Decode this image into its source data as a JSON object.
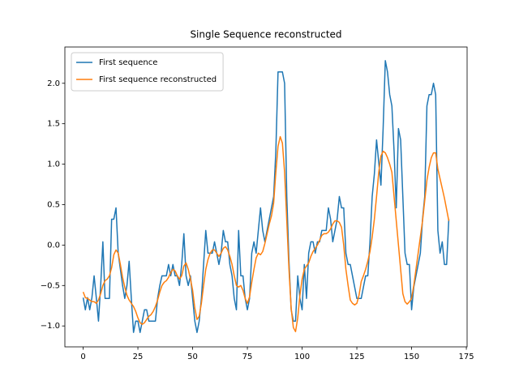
{
  "chart_data": {
    "type": "line",
    "title": "Single Sequence reconstructed",
    "x": [
      0,
      1,
      2,
      3,
      4,
      5,
      6,
      7,
      8,
      9,
      10,
      11,
      12,
      13,
      14,
      15,
      16,
      17,
      18,
      19,
      20,
      21,
      22,
      23,
      24,
      25,
      26,
      27,
      28,
      29,
      30,
      31,
      32,
      33,
      34,
      35,
      36,
      37,
      38,
      39,
      40,
      41,
      42,
      43,
      44,
      45,
      46,
      47,
      48,
      49,
      50,
      51,
      52,
      53,
      54,
      55,
      56,
      57,
      58,
      59,
      60,
      61,
      62,
      63,
      64,
      65,
      66,
      67,
      68,
      69,
      70,
      71,
      72,
      73,
      74,
      75,
      76,
      77,
      78,
      79,
      80,
      81,
      82,
      83,
      84,
      85,
      86,
      87,
      88,
      89,
      90,
      91,
      92,
      93,
      94,
      95,
      96,
      97,
      98,
      99,
      100,
      101,
      102,
      103,
      104,
      105,
      106,
      107,
      108,
      109,
      110,
      111,
      112,
      113,
      114,
      115,
      116,
      117,
      118,
      119,
      120,
      121,
      122,
      123,
      124,
      125,
      126,
      127,
      128,
      129,
      130,
      131,
      132,
      133,
      134,
      135,
      136,
      137,
      138,
      139,
      140,
      141,
      142,
      143,
      144,
      145,
      146,
      147,
      148,
      149,
      150,
      151,
      152,
      153,
      154,
      155,
      156,
      157,
      158,
      159,
      160,
      161,
      162,
      163,
      164,
      165,
      166,
      167
    ],
    "series": [
      {
        "name": "First sequence",
        "color": "#1f77b4",
        "values": [
          -0.65,
          -0.8,
          -0.65,
          -0.8,
          -0.65,
          -0.38,
          -0.65,
          -0.94,
          -0.5,
          0.04,
          -0.66,
          -0.66,
          -0.66,
          0.32,
          0.32,
          0.46,
          -0.1,
          -0.3,
          -0.5,
          -0.66,
          -0.5,
          -0.2,
          -0.66,
          -1.08,
          -0.94,
          -0.94,
          -1.08,
          -0.94,
          -0.8,
          -0.8,
          -0.94,
          -0.94,
          -0.94,
          -0.94,
          -0.66,
          -0.5,
          -0.38,
          -0.38,
          -0.38,
          -0.24,
          -0.38,
          -0.24,
          -0.38,
          -0.38,
          -0.5,
          -0.24,
          0.14,
          -0.38,
          -0.5,
          -0.38,
          -0.66,
          -0.94,
          -1.08,
          -0.94,
          -0.66,
          -0.24,
          0.18,
          -0.1,
          -0.1,
          -0.1,
          0.04,
          -0.1,
          -0.24,
          -0.1,
          0.18,
          0.04,
          0.04,
          -0.24,
          -0.38,
          -0.66,
          -0.8,
          0.18,
          -0.38,
          -0.38,
          -0.66,
          -0.8,
          -0.66,
          -0.1,
          0.04,
          -0.1,
          0.18,
          0.46,
          0.18,
          0.04,
          0.18,
          0.32,
          0.46,
          0.6,
          1.16,
          2.14,
          2.14,
          2.14,
          2.0,
          0.6,
          -0.2,
          -0.8,
          -0.94,
          -0.94,
          -0.38,
          -0.66,
          -0.8,
          -0.24,
          -0.66,
          -0.1,
          0.04,
          0.04,
          -0.1,
          0.04,
          0.04,
          0.18,
          0.18,
          0.18,
          0.46,
          0.32,
          0.04,
          0.18,
          0.32,
          0.6,
          0.46,
          0.46,
          -0.1,
          -0.24,
          -0.24,
          -0.38,
          -0.52,
          -0.66,
          -0.66,
          -0.66,
          -0.52,
          -0.38,
          -0.38,
          0.04,
          0.6,
          0.88,
          1.3,
          1.02,
          0.74,
          1.44,
          2.28,
          2.14,
          1.86,
          1.72,
          1.16,
          0.46,
          1.44,
          1.3,
          0.6,
          -0.1,
          -0.24,
          -0.24,
          -0.8,
          -0.52,
          -0.38,
          -0.24,
          -0.1,
          0.32,
          0.6,
          1.72,
          1.86,
          1.86,
          2.0,
          1.86,
          0.18,
          -0.1,
          0.04,
          -0.24,
          -0.24,
          0.32
        ]
      },
      {
        "name": "First sequence reconstructed",
        "color": "#ff7f0e",
        "values": [
          -0.58,
          -0.65,
          -0.66,
          -0.68,
          -0.7,
          -0.7,
          -0.72,
          -0.68,
          -0.6,
          -0.5,
          -0.44,
          -0.42,
          -0.38,
          -0.28,
          -0.12,
          -0.06,
          -0.1,
          -0.24,
          -0.4,
          -0.52,
          -0.62,
          -0.68,
          -0.72,
          -0.76,
          -0.82,
          -0.9,
          -0.96,
          -0.98,
          -0.96,
          -0.92,
          -0.88,
          -0.86,
          -0.82,
          -0.76,
          -0.68,
          -0.58,
          -0.5,
          -0.46,
          -0.44,
          -0.4,
          -0.34,
          -0.3,
          -0.32,
          -0.38,
          -0.42,
          -0.38,
          -0.26,
          -0.22,
          -0.3,
          -0.42,
          -0.56,
          -0.78,
          -0.92,
          -0.88,
          -0.72,
          -0.5,
          -0.3,
          -0.18,
          -0.1,
          -0.06,
          -0.06,
          -0.1,
          -0.14,
          -0.1,
          -0.04,
          -0.02,
          -0.06,
          -0.14,
          -0.24,
          -0.38,
          -0.5,
          -0.52,
          -0.5,
          -0.56,
          -0.66,
          -0.72,
          -0.64,
          -0.46,
          -0.3,
          -0.16,
          -0.1,
          -0.12,
          -0.08,
          0.02,
          0.14,
          0.26,
          0.36,
          0.52,
          0.9,
          1.22,
          1.34,
          1.26,
          0.9,
          0.3,
          -0.3,
          -0.78,
          -1.02,
          -1.07,
          -0.9,
          -0.62,
          -0.42,
          -0.3,
          -0.26,
          -0.22,
          -0.14,
          -0.08,
          -0.04,
          0.0,
          0.06,
          0.12,
          0.14,
          0.14,
          0.16,
          0.2,
          0.26,
          0.3,
          0.3,
          0.28,
          0.22,
          0.0,
          -0.3,
          -0.5,
          -0.68,
          -0.72,
          -0.74,
          -0.72,
          -0.62,
          -0.45,
          -0.38,
          -0.3,
          -0.2,
          -0.08,
          0.1,
          0.32,
          0.6,
          0.9,
          1.1,
          1.16,
          1.14,
          1.08,
          1.0,
          0.9,
          0.6,
          0.3,
          0.0,
          -0.3,
          -0.6,
          -0.7,
          -0.73,
          -0.7,
          -0.66,
          -0.5,
          -0.3,
          -0.1,
          0.1,
          0.3,
          0.55,
          0.8,
          0.96,
          1.08,
          1.14,
          1.14,
          0.94,
          0.82,
          0.7,
          0.58,
          0.44,
          0.3
        ]
      }
    ],
    "xlim": [
      -8.35,
      175.35
    ],
    "ylim": [
      -1.2585,
      2.4485
    ],
    "xticks": [
      0,
      25,
      50,
      75,
      100,
      125,
      150,
      175
    ],
    "yticks": [
      {
        "value": -1,
        "label": "−1.0"
      },
      {
        "value": -0.5,
        "label": "−0.5"
      },
      {
        "value": 0,
        "label": "0.0"
      },
      0.5,
      {
        "value": 1,
        "label": "1.0"
      },
      1.5,
      {
        "value": 2,
        "label": "2.0"
      }
    ],
    "legend": "upper left",
    "grid": false
  }
}
